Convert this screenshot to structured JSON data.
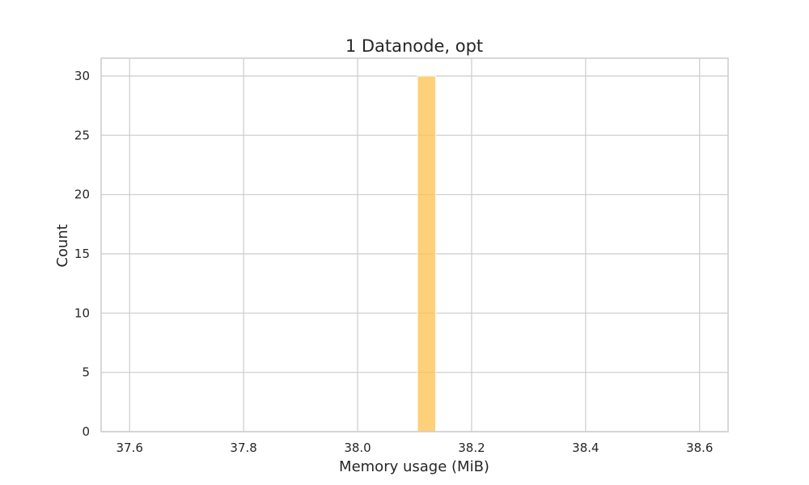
{
  "chart_data": {
    "type": "bar",
    "title": "1 Datanode, opt",
    "xlabel": "Memory usage (MiB)",
    "ylabel": "Count",
    "xlim": [
      37.55,
      38.65
    ],
    "ylim": [
      0,
      31.5
    ],
    "xticks": [
      37.6,
      37.8,
      38.0,
      38.2,
      38.4,
      38.6
    ],
    "xtick_labels": [
      "37.6",
      "37.8",
      "38.0",
      "38.2",
      "38.4",
      "38.6"
    ],
    "yticks": [
      0,
      5,
      10,
      15,
      20,
      25,
      30
    ],
    "ytick_labels": [
      "0",
      "5",
      "10",
      "15",
      "20",
      "25",
      "30"
    ],
    "grid": true,
    "bars": [
      {
        "x_start": 38.105,
        "x_end": 38.137,
        "count": 30
      }
    ],
    "bar_color": "#ffc04d",
    "bar_opacity": 0.75
  }
}
